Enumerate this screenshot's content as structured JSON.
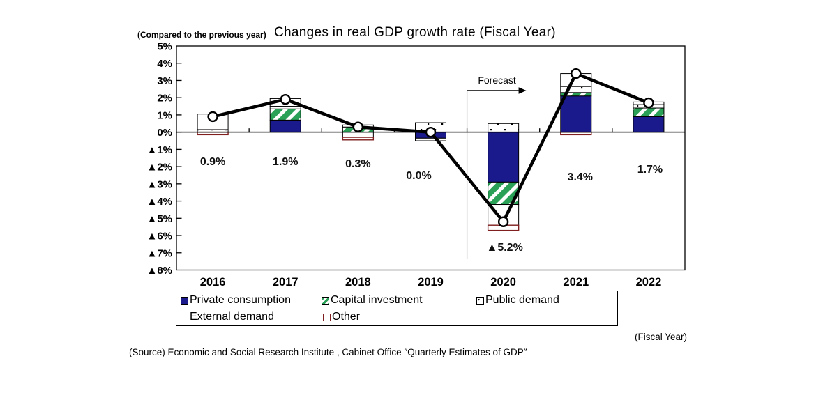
{
  "chart_data": {
    "type": "stacked-bar-with-line",
    "title": "Changes in real GDP growth rate (Fiscal Year)",
    "axis_note": "(Compared to the previous year)",
    "categories": [
      "2016",
      "2017",
      "2018",
      "2019",
      "2020",
      "2021",
      "2022"
    ],
    "ylim": [
      -8,
      5
    ],
    "y_ticks": [
      "5%",
      "4%",
      "3%",
      "2%",
      "1%",
      "0%",
      "▲1%",
      "▲2%",
      "▲3%",
      "▲4%",
      "▲5%",
      "▲6%",
      "▲7%",
      "▲8%"
    ],
    "grid": "zero-line-only",
    "legend_position": "bottom",
    "forecast": {
      "label": "Forecast",
      "starts_at_category": "2020"
    },
    "line": {
      "name": "Real GDP growth rate (change from previous year, %)",
      "values": [
        0.9,
        1.9,
        0.3,
        0.0,
        -5.2,
        3.4,
        1.7
      ],
      "labels": [
        "0.9%",
        "1.9%",
        "0.3%",
        "0.0%",
        "▲5.2%",
        "3.4%",
        "1.7%"
      ]
    },
    "series": [
      {
        "name": "Private consumption",
        "pattern": "solid",
        "color": "#1a1a8c",
        "values": [
          0,
          0.7,
          0,
          -0.35,
          -2.9,
          2.1,
          0.9
        ]
      },
      {
        "name": "Capital investment",
        "pattern": "diagonal-stripes",
        "color": "#2aa157",
        "values": [
          0,
          0.65,
          0.3,
          0,
          -1.3,
          0.2,
          0.5
        ]
      },
      {
        "name": "Public demand",
        "pattern": "dots",
        "color": "#ffffff",
        "values": [
          0.15,
          0.15,
          0.12,
          0.55,
          0.5,
          0.35,
          0.2
        ]
      },
      {
        "name": "External demand",
        "pattern": "plain",
        "color": "#ffffff",
        "values": [
          0.9,
          0.45,
          -0.3,
          -0.15,
          -1.2,
          0.75,
          0.15
        ]
      },
      {
        "name": "Other",
        "pattern": "outline",
        "color": "#7f1f1f",
        "values": [
          -0.15,
          0,
          -0.15,
          0,
          -0.3,
          -0.15,
          0
        ]
      }
    ]
  },
  "footer": {
    "fiscal_year_note": "(Fiscal Year)",
    "source": "(Source) Economic and Social Research Institute , Cabinet Office ″Quarterly Estimates of GDP″"
  }
}
